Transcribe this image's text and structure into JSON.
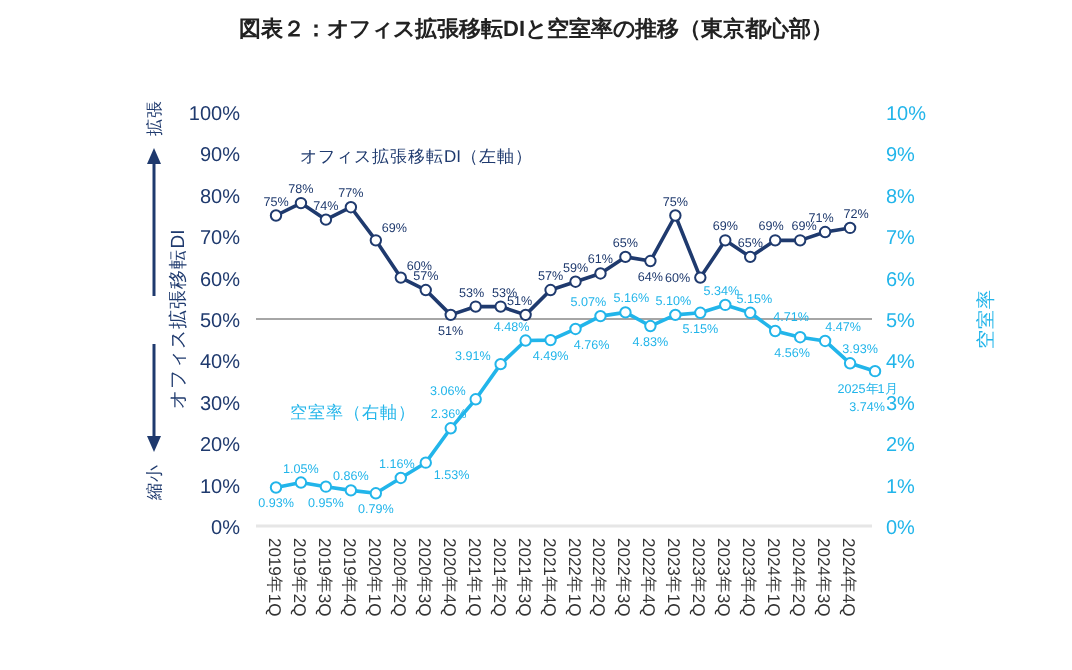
{
  "chart_data": {
    "type": "line",
    "title": "図表２：オフィス拡張移転DIと空室率の推移（東京都心部）",
    "categories": [
      "2019年1Q",
      "2019年2Q",
      "2019年3Q",
      "2019年4Q",
      "2020年1Q",
      "2020年2Q",
      "2020年3Q",
      "2020年4Q",
      "2021年1Q",
      "2021年2Q",
      "2021年3Q",
      "2021年4Q",
      "2022年1Q",
      "2022年2Q",
      "2022年3Q",
      "2022年4Q",
      "2023年1Q",
      "2023年2Q",
      "2023年3Q",
      "2023年4Q",
      "2024年1Q",
      "2024年2Q",
      "2024年3Q",
      "2024年4Q",
      null
    ],
    "series": [
      {
        "name": "オフィス拡張移転DI（左軸）",
        "color": "#1f3a6e",
        "axis": "y",
        "values": [
          75,
          78,
          74,
          77,
          69,
          60,
          57,
          51,
          53,
          53,
          51,
          57,
          59,
          61,
          65,
          64,
          75,
          60,
          69,
          65,
          69,
          69,
          71,
          72,
          null
        ],
        "value_labels": [
          "75%",
          "78%",
          "74%",
          "77%",
          "69%",
          "60%",
          "57%",
          "51%",
          "53%",
          "53%",
          "51%",
          "57%",
          "59%",
          "61%",
          "65%",
          "64%",
          "75%",
          "60%",
          "69%",
          "65%",
          "69%",
          "69%",
          "71%",
          "72%",
          null
        ]
      },
      {
        "name": "空室率（右軸）",
        "color": "#22b5ea",
        "axis": "y2",
        "values": [
          0.93,
          1.05,
          0.95,
          0.86,
          0.79,
          1.16,
          1.53,
          2.36,
          3.06,
          3.91,
          4.48,
          4.49,
          4.76,
          5.07,
          5.16,
          4.83,
          5.1,
          5.15,
          5.34,
          5.15,
          4.71,
          4.56,
          4.47,
          3.93,
          3.74
        ],
        "value_labels": [
          "0.93%",
          "1.05%",
          "0.95%",
          "0.86%",
          "0.79%",
          "1.16%",
          "1.53%",
          "2.36%",
          "3.06%",
          "3.91%",
          "4.48%",
          "4.49%",
          "4.76%",
          "5.07%",
          "5.16%",
          "4.83%",
          "5.10%",
          "5.15%",
          "5.34%",
          "5.15%",
          "4.71%",
          "4.56%",
          "4.47%",
          "3.93%",
          "3.74%"
        ]
      }
    ],
    "ylabel": "オフィス拡張移転DI",
    "y2label": "空室率",
    "ylim": [
      0,
      100
    ],
    "yticks": [
      {
        "value": 0,
        "label": "0%"
      },
      {
        "value": 10,
        "label": "10%"
      },
      {
        "value": 20,
        "label": "20%"
      },
      {
        "value": 30,
        "label": "30%"
      },
      {
        "value": 40,
        "label": "40%"
      },
      {
        "value": 50,
        "label": "50%"
      },
      {
        "value": 60,
        "label": "60%"
      },
      {
        "value": 70,
        "label": "70%"
      },
      {
        "value": 80,
        "label": "80%"
      },
      {
        "value": 90,
        "label": "90%"
      },
      {
        "value": 100,
        "label": "100%"
      }
    ],
    "y2lim": [
      0,
      10
    ],
    "y2ticks": [
      {
        "value": 0,
        "label": "0%"
      },
      {
        "value": 1,
        "label": "1%"
      },
      {
        "value": 2,
        "label": "2%"
      },
      {
        "value": 3,
        "label": "3%"
      },
      {
        "value": 4,
        "label": "4%"
      },
      {
        "value": 5,
        "label": "5%"
      },
      {
        "value": 6,
        "label": "6%"
      },
      {
        "value": 7,
        "label": "7%"
      },
      {
        "value": 8,
        "label": "8%"
      },
      {
        "value": 9,
        "label": "9%"
      },
      {
        "value": 10,
        "label": "10%"
      }
    ],
    "ref_lines": [
      {
        "axis": "y",
        "value": 50,
        "color": "#a6a6a6"
      }
    ],
    "marker": "circle",
    "line_style": "solid",
    "annotations": [
      "拡張",
      "縮小",
      "2025年1月"
    ]
  }
}
